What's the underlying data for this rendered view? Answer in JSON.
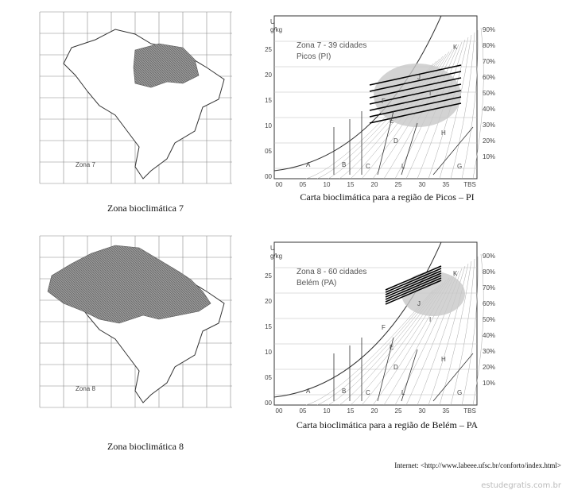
{
  "panels": [
    {
      "map_label": "Zona 7",
      "caption": "Zona bioclimática 7",
      "chart": {
        "title": "Zona 7 - 39 cidades",
        "subtitle": "Picos (PI)",
        "caption": "Carta bioclimática para a região de Picos – PI"
      }
    },
    {
      "map_label": "Zona 8",
      "caption": "Zona bioclimática 8",
      "chart": {
        "title": "Zona 8 - 60 cidades",
        "subtitle": "Belém (PA)",
        "caption": "Carta bioclimática para a região de Belém – PA"
      }
    }
  ],
  "chart_axes": {
    "bottom": [
      "00",
      "05",
      "10",
      "15",
      "20",
      "25",
      "30",
      "35",
      "TBS"
    ],
    "left_unit": "U",
    "left_sub": "g/kg",
    "left": [
      "25",
      "20",
      "15",
      "10",
      "05",
      "00"
    ],
    "right": [
      "90%",
      "80%",
      "70%",
      "60%",
      "50%",
      "40%",
      "30%",
      "20%",
      "10%"
    ],
    "zones": [
      "A",
      "B",
      "C",
      "L",
      "G",
      "H",
      "D",
      "E",
      "F",
      "I",
      "J",
      "K"
    ]
  },
  "source": "Internet: <http://www.labeee.ufsc.br/conforto/index.html>",
  "watermark": "estudegratis.com.br"
}
